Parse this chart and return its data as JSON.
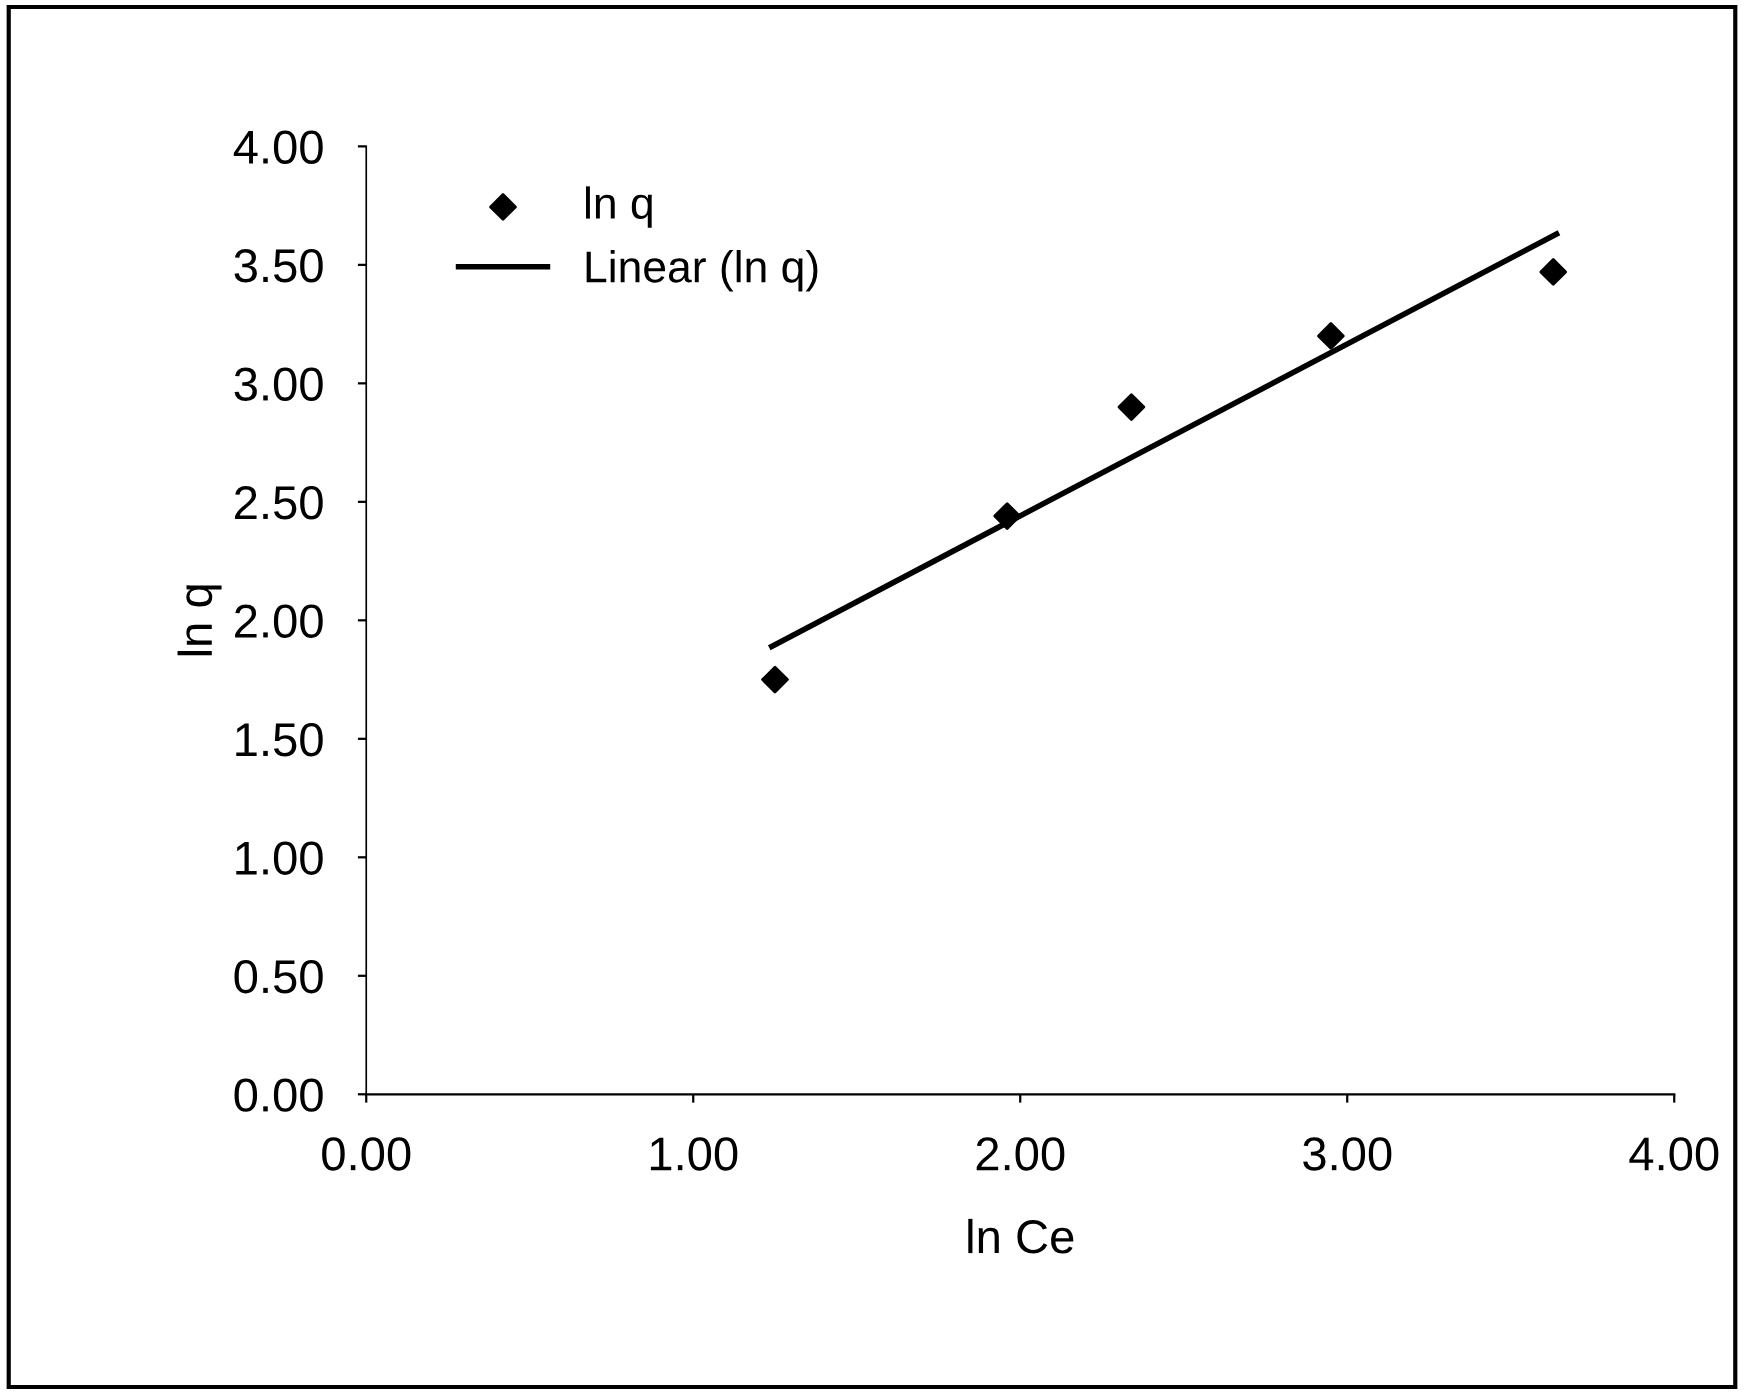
{
  "chart_data": {
    "type": "scatter",
    "xlabel": "ln Ce",
    "ylabel": "ln q",
    "series": [
      {
        "name": "ln q",
        "color": "#000000",
        "marker": "diamond",
        "x": [
          1.25,
          1.96,
          2.34,
          2.95,
          3.63
        ],
        "values": [
          1.75,
          2.44,
          2.9,
          3.2,
          3.47
        ]
      },
      {
        "name": "Linear (ln q)",
        "type": "line",
        "color": "#000000",
        "marker": "none",
        "x": [
          1.24,
          3.64
        ],
        "values": [
          1.89,
          3.63
        ]
      }
    ],
    "xlim": [
      0,
      4
    ],
    "xticks": [
      {
        "value": 0,
        "label": "0.00"
      },
      {
        "value": 1,
        "label": "1.00"
      },
      {
        "value": 2,
        "label": "2.00"
      },
      {
        "value": 3,
        "label": "3.00"
      },
      {
        "value": 4,
        "label": "4.00"
      }
    ],
    "ylim": [
      0,
      4
    ],
    "yticks": [
      {
        "value": 0,
        "label": "0.00"
      },
      {
        "value": 0.5,
        "label": "0.50"
      },
      {
        "value": 1,
        "label": "1.00"
      },
      {
        "value": 1.5,
        "label": "1.50"
      },
      {
        "value": 2,
        "label": "2.00"
      },
      {
        "value": 2.5,
        "label": "2.50"
      },
      {
        "value": 3,
        "label": "3.00"
      },
      {
        "value": 3.5,
        "label": "3.50"
      },
      {
        "value": 4,
        "label": "4.00"
      }
    ],
    "grid": false,
    "legend": "top left"
  }
}
